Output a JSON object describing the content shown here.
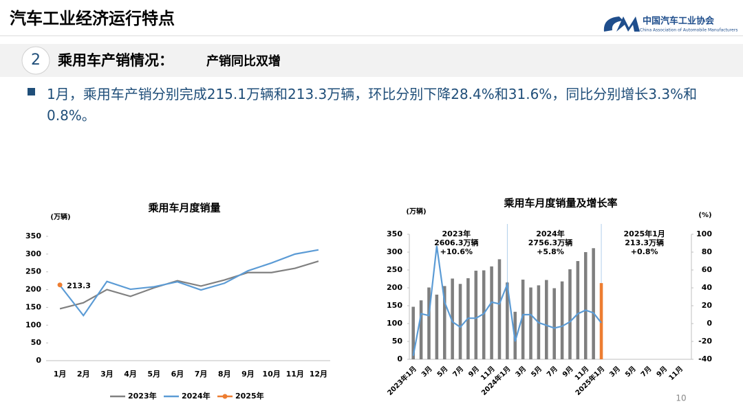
{
  "header": {
    "title": "汽车工业经济运行特点",
    "logo_cn": "中国汽车工业协会",
    "logo_en": "China Association of Automobile Manufacturers"
  },
  "section": {
    "number": "2",
    "title": "乘用车产销情况：",
    "subtitle": "产销同比双增"
  },
  "bullet": "1月，乘用车产销分别完成215.1万辆和213.3万辆，环比分别下降28.4%和31.6%，同比分别增长3.3%和0.8%。",
  "page_number": "10",
  "chart_data": [
    {
      "type": "line",
      "title": "乘用车月度销量",
      "y_unit": "(万辆)",
      "categories": [
        "1月",
        "2月",
        "3月",
        "4月",
        "5月",
        "6月",
        "7月",
        "8月",
        "9月",
        "10月",
        "11月",
        "12月"
      ],
      "series": [
        {
          "name": "2023年",
          "color": "#808080",
          "values": [
            146,
            163,
            200,
            181,
            205,
            225,
            210,
            227,
            248,
            248,
            260,
            280
          ]
        },
        {
          "name": "2024年",
          "color": "#5b9bd5",
          "values": [
            212,
            127,
            223,
            201,
            208,
            222,
            199,
            218,
            253,
            275,
            300,
            312
          ]
        },
        {
          "name": "2025年",
          "color": "#ed7d31",
          "marker": true,
          "data_labels": true,
          "values": [
            213.3,
            null,
            null,
            null,
            null,
            null,
            null,
            null,
            null,
            null,
            null,
            null
          ]
        }
      ],
      "ylim": [
        0,
        350
      ],
      "yticks": [
        0,
        50,
        100,
        150,
        200,
        250,
        300,
        350
      ],
      "grid": false,
      "legend": "bottom"
    },
    {
      "type": "bar_line",
      "title": "乘用车月度销量及增长率",
      "y_unit": "(万辆)",
      "y2_unit": "(%)",
      "categories": [
        "2023年1月",
        null,
        "3月",
        null,
        "5月",
        null,
        "7月",
        null,
        "9月",
        null,
        "11月",
        null,
        "2024年1月",
        null,
        "3月",
        null,
        "5月",
        null,
        "7月",
        null,
        "9月",
        null,
        "11月",
        null,
        "2025年1月",
        null,
        "3月",
        null,
        "5月",
        null,
        "7月",
        null,
        "9月",
        null,
        "11月",
        null
      ],
      "series": [
        {
          "type": "bar",
          "color": "#7f7f7f",
          "values": [
            147,
            165,
            201,
            181,
            205,
            226,
            211,
            227,
            248,
            249,
            260,
            280,
            215,
            133,
            223,
            201,
            207,
            222,
            199,
            218,
            252,
            275,
            300,
            311,
            null,
            null,
            null,
            null,
            null,
            null,
            null,
            null,
            null,
            null,
            null,
            null
          ]
        },
        {
          "type": "bar",
          "color": "#ed7d31",
          "values": [
            null,
            null,
            null,
            null,
            null,
            null,
            null,
            null,
            null,
            null,
            null,
            null,
            null,
            null,
            null,
            null,
            null,
            null,
            null,
            null,
            null,
            null,
            null,
            null,
            213.3,
            null,
            null,
            null,
            null,
            null,
            null,
            null,
            null,
            null,
            null,
            null
          ]
        },
        {
          "type": "line",
          "axis": "y2",
          "color": "#5b9bd5",
          "values": [
            -36,
            11,
            9,
            87,
            24,
            2,
            -4,
            6,
            6,
            11,
            24,
            22,
            44,
            -20,
            10,
            10,
            1,
            -2,
            -5,
            -3,
            2,
            11,
            15,
            12,
            0.8,
            null,
            null,
            null,
            null,
            null,
            null,
            null,
            null,
            null,
            null,
            null
          ]
        }
      ],
      "annotations": [
        [
          "2023年",
          "2606.3万辆",
          "+10.6%"
        ],
        [
          "2024年",
          "2756.3万辆",
          "+5.8%"
        ],
        [
          "2025年1月",
          "213.3万辆",
          "+0.8%"
        ]
      ],
      "ylim": [
        0,
        350
      ],
      "yticks": [
        0,
        50,
        100,
        150,
        200,
        250,
        300,
        350
      ],
      "y2lim": [
        -40,
        100
      ],
      "y2ticks": [
        -40,
        -20,
        0,
        20,
        40,
        60,
        80,
        100
      ],
      "grid": false
    }
  ]
}
